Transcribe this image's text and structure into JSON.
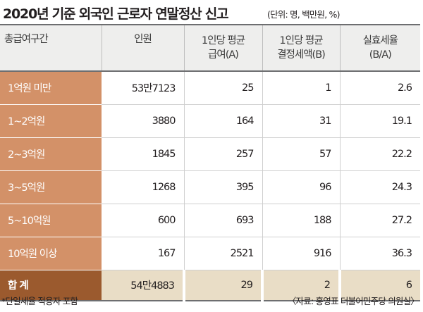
{
  "title": "2020년 기준 외국인 근로자 연말정산 신고",
  "unit": "(단위: 명, 백만원, %)",
  "table": {
    "columns": [
      "총급여구간",
      "인원",
      "1인당 평균 급여(A)",
      "1인당 평균 결정세액(B)",
      "실효세율 (B/A)"
    ],
    "header": {
      "col1": "총급여구간",
      "col2": "인원",
      "col3_line1": "1인당 평균",
      "col3_line2": "급여(A)",
      "col4_line1": "1인당 평균",
      "col4_line2": "결정세액(B)",
      "col5_line1": "실효세율",
      "col5_line2": "(B/A)"
    },
    "rows": [
      {
        "range": "1억원 미만",
        "people": "53만7123",
        "avg_salary": "25",
        "avg_tax": "1",
        "rate": "2.6"
      },
      {
        "range": "1~2억원",
        "people": "3880",
        "avg_salary": "164",
        "avg_tax": "31",
        "rate": "19.1"
      },
      {
        "range": "2~3억원",
        "people": "1845",
        "avg_salary": "257",
        "avg_tax": "57",
        "rate": "22.2"
      },
      {
        "range": "3~5억원",
        "people": "1268",
        "avg_salary": "395",
        "avg_tax": "96",
        "rate": "24.3"
      },
      {
        "range": "5~10억원",
        "people": "600",
        "avg_salary": "693",
        "avg_tax": "188",
        "rate": "27.2"
      },
      {
        "range": "10억원 이상",
        "people": "167",
        "avg_salary": "2521",
        "avg_tax": "916",
        "rate": "36.3"
      }
    ],
    "total": {
      "range": "합 계",
      "people": "54만4883",
      "avg_salary": "29",
      "avg_tax": "2",
      "rate": "6"
    }
  },
  "footnote": "*단일세율 적용자 포함",
  "source": "〈자료: 홍영표 더불어민주당 의원실〉",
  "colors": {
    "category_cell": "#d39168",
    "total_category_cell": "#9b5a2e",
    "total_row": "#e9ddc6",
    "header_bg": "#eeeeed"
  }
}
